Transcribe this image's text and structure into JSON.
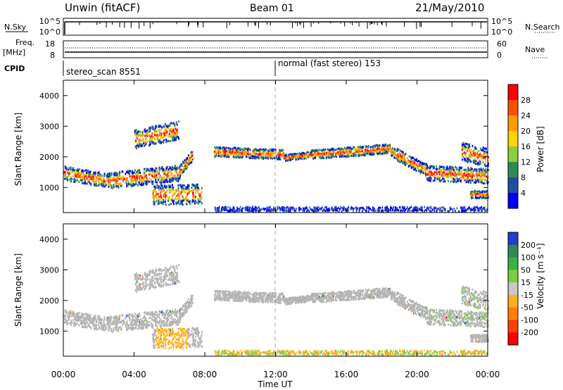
{
  "header": {
    "station": "Unwin (fitACF)",
    "beam": "Beam 01",
    "date": "21/May/2010"
  },
  "top_panels": {
    "nsky_label": "N.Sky",
    "nsky_ticks": [
      "10^5",
      "10^0"
    ],
    "nsearch_label": "N.Search",
    "nsearch_ticks": [
      "10^5",
      "10^0"
    ],
    "freq_label": "Freq.",
    "freq_unit": "[MHz]",
    "freq_ticks": [
      "18",
      "8"
    ],
    "nave_label": "Nave",
    "nave_ticks": [
      "60",
      "0"
    ],
    "cpid_label": "CPID",
    "cpid_segments": [
      {
        "label": "stereo_scan 8551",
        "start_hour": 0
      },
      {
        "label": "normal (fast stereo) 153",
        "start_hour": 12
      }
    ]
  },
  "axes": {
    "ylabel": "Slant Range [km]",
    "yticks": [
      "4000",
      "3000",
      "2000",
      "1000"
    ],
    "xticks": [
      "00:00",
      "04:00",
      "08:00",
      "12:00",
      "16:00",
      "20:00",
      "00:00"
    ],
    "xlabel": "Time UT"
  },
  "power_colorbar": {
    "label": "Power [dB]",
    "ticks": [
      "28",
      "24",
      "20",
      "16",
      "12",
      "8",
      "4"
    ],
    "colors": [
      "#ff0000",
      "#ff5000",
      "#ff9b00",
      "#ffd700",
      "#8fcd3c",
      "#2e8b57",
      "#1e50a0",
      "#0000ff"
    ]
  },
  "velocity_colorbar": {
    "label": "Velocity [m s⁻¹]",
    "ticks": [
      "200",
      "100",
      "50",
      "15",
      "-15",
      "-50",
      "-100",
      "-200"
    ],
    "colors": [
      "#1f3fcf",
      "#2e8b57",
      "#3cb043",
      "#7ccd40",
      "#c8c8c8",
      "#ffb020",
      "#ff8000",
      "#ff4000",
      "#ff0000"
    ]
  },
  "chart_data": {
    "type": "heatmap",
    "xlim_hours": [
      0,
      24
    ],
    "ylim_km": [
      180,
      4500
    ],
    "ground_scatter_color": "#b4b4b4",
    "backscatter_bands": [
      {
        "t0": 0.0,
        "t1": 2.5,
        "r0": 1500,
        "r1": 1250,
        "w": 230
      },
      {
        "t0": 2.5,
        "t1": 6.5,
        "r0": 1250,
        "r1": 1500,
        "w": 260
      },
      {
        "t0": 6.5,
        "t1": 7.3,
        "r0": 1500,
        "r1": 2100,
        "w": 200
      },
      {
        "t0": 5.0,
        "t1": 7.8,
        "r0": 800,
        "r1": 800,
        "w": 330
      },
      {
        "t0": 4.0,
        "t1": 6.5,
        "r0": 2600,
        "r1": 2900,
        "w": 300
      },
      {
        "t0": 8.5,
        "t1": 12.5,
        "r0": 2200,
        "r1": 2100,
        "w": 160
      },
      {
        "t0": 12.5,
        "t1": 14.0,
        "r0": 2000,
        "r1": 2100,
        "w": 100
      },
      {
        "t0": 14.0,
        "t1": 18.5,
        "r0": 2100,
        "r1": 2300,
        "w": 150
      },
      {
        "t0": 18.5,
        "t1": 20.5,
        "r0": 2200,
        "r1": 1600,
        "w": 200
      },
      {
        "t0": 20.5,
        "t1": 24.0,
        "r0": 1500,
        "r1": 1400,
        "w": 250
      },
      {
        "t0": 23.0,
        "t1": 24.0,
        "r0": 800,
        "r1": 800,
        "w": 120
      },
      {
        "t0": 22.5,
        "t1": 24.0,
        "r0": 2200,
        "r1": 2000,
        "w": 300
      }
    ],
    "near_range_band": {
      "t0": 8.5,
      "t1": 24.0,
      "r0": 250,
      "r1": 400
    }
  }
}
